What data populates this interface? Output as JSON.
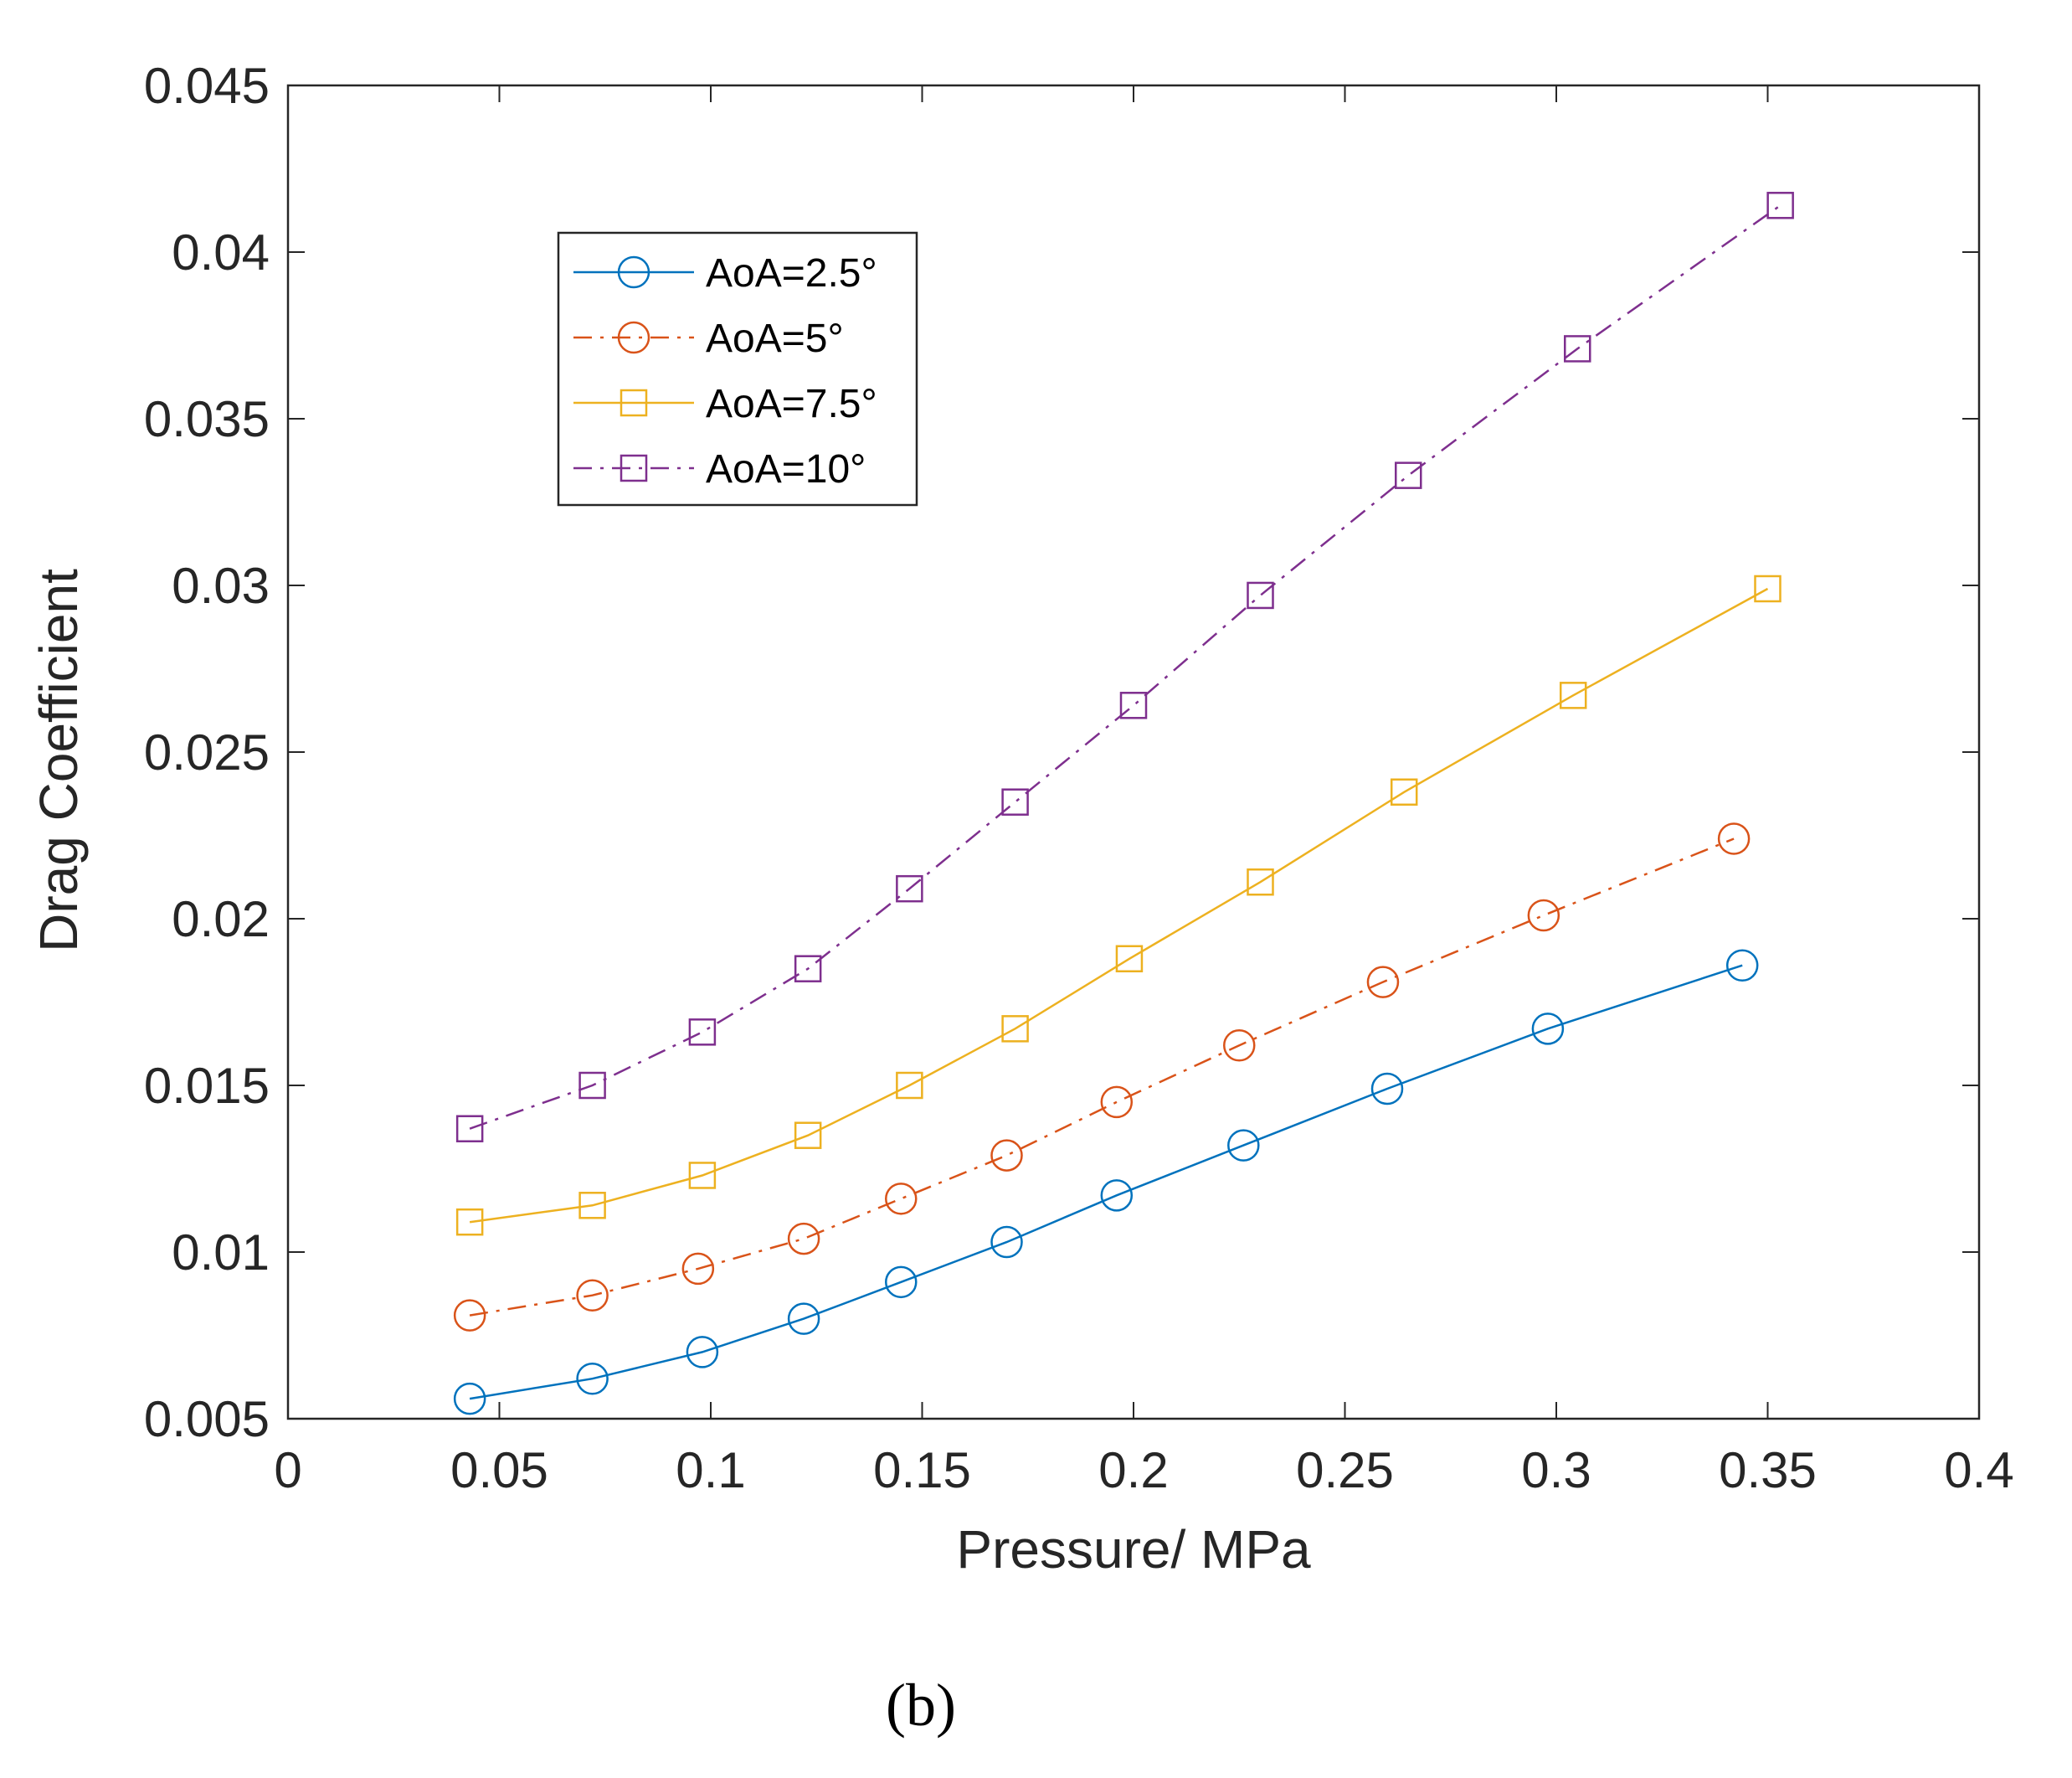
{
  "chart_data": {
    "type": "line",
    "title": "",
    "xlabel": "Pressure/ MPa",
    "ylabel": "Drag Coefficient",
    "xlim": [
      0,
      0.4
    ],
    "ylim": [
      0.005,
      0.045
    ],
    "xticks": [
      0,
      0.05,
      0.1,
      0.15,
      0.2,
      0.25,
      0.3,
      0.35,
      0.4
    ],
    "xtick_labels": [
      "0",
      "0.05",
      "0.1",
      "0.15",
      "0.2",
      "0.25",
      "0.3",
      "0.35",
      "0.4"
    ],
    "yticks": [
      0.005,
      0.01,
      0.015,
      0.02,
      0.025,
      0.03,
      0.035,
      0.04,
      0.045
    ],
    "ytick_labels": [
      "0.005",
      "0.01",
      "0.015",
      "0.02",
      "0.025",
      "0.03",
      "0.035",
      "0.04",
      "0.045"
    ],
    "grid": false,
    "legend_position": "top-left",
    "caption": "(b)",
    "series": [
      {
        "name": "AoA=2.5°",
        "color": "#0072BD",
        "line_style": "solid",
        "marker": "circle",
        "x": [
          0.043,
          0.072,
          0.098,
          0.122,
          0.145,
          0.17,
          0.196,
          0.226,
          0.26,
          0.298,
          0.344
        ],
        "y": [
          0.0056,
          0.0062,
          0.007,
          0.008,
          0.0091,
          0.0103,
          0.0117,
          0.0132,
          0.0149,
          0.0167,
          0.0186
        ]
      },
      {
        "name": "AoA=5°",
        "color": "#D95319",
        "line_style": "dashdot",
        "marker": "circle",
        "x": [
          0.043,
          0.072,
          0.097,
          0.122,
          0.145,
          0.17,
          0.196,
          0.225,
          0.259,
          0.297,
          0.342
        ],
        "y": [
          0.0081,
          0.0087,
          0.0095,
          0.0104,
          0.0116,
          0.0129,
          0.0145,
          0.0162,
          0.0181,
          0.0201,
          0.0224
        ]
      },
      {
        "name": "AoA=7.5°",
        "color": "#EDB120",
        "line_style": "solid",
        "marker": "square",
        "x": [
          0.043,
          0.072,
          0.098,
          0.123,
          0.147,
          0.172,
          0.199,
          0.23,
          0.264,
          0.304,
          0.35
        ],
        "y": [
          0.0109,
          0.0114,
          0.0123,
          0.0135,
          0.015,
          0.0167,
          0.0188,
          0.0211,
          0.0238,
          0.0267,
          0.0299
        ]
      },
      {
        "name": "AoA=10°",
        "color": "#7E2F8E",
        "line_style": "dashdot",
        "marker": "square",
        "x": [
          0.043,
          0.072,
          0.098,
          0.123,
          0.147,
          0.172,
          0.2,
          0.23,
          0.265,
          0.305,
          0.353
        ],
        "y": [
          0.0137,
          0.015,
          0.0166,
          0.0185,
          0.0209,
          0.0235,
          0.0264,
          0.0297,
          0.0333,
          0.0371,
          0.0414
        ]
      }
    ]
  }
}
